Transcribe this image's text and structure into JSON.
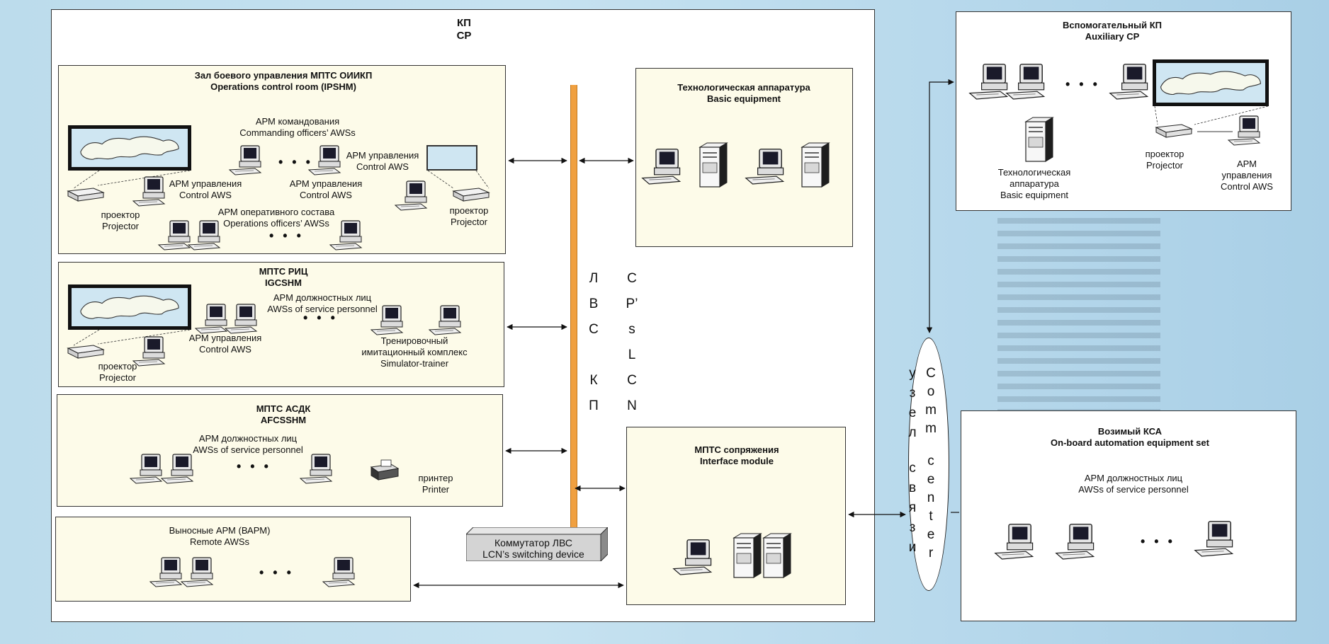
{
  "main_cp": {
    "title_ru": "КП",
    "title_en": "CP"
  },
  "ops_room": {
    "title_ru": "Зал боевого управления МПТС ОИИКП",
    "title_en": "Operations control room (IPSHM)",
    "commanding_ru": "АРМ командования",
    "commanding_en": "Commanding officers’ AWSs",
    "control_aws_ru": "АРМ управления",
    "control_aws_en": "Control AWS",
    "ops_staff_ru": "АРМ оперативного состава",
    "ops_staff_en": "Operations officers’ AWSs",
    "projector_ru": "проектор",
    "projector_en": "Projector",
    "dots": "• • •"
  },
  "igcshm": {
    "title_ru": "МПТС РИЦ",
    "title_en": "IGCSHM",
    "personnel_ru": "АРМ должностных лиц",
    "personnel_en": "AWSs of service personnel",
    "control_aws_ru": "АРМ управления",
    "control_aws_en": "Control AWS",
    "trainer_ru1": "Тренировочный",
    "trainer_ru2": "имитационный комплекс",
    "trainer_en": "Simulator-trainer",
    "projector_ru": "проектор",
    "projector_en": "Projector",
    "dots": "• • •"
  },
  "afcsshm": {
    "title_ru": "МПТС АСДК",
    "title_en": "AFCSSHM",
    "personnel_ru": "АРМ должностных лиц",
    "personnel_en": "AWSs of service personnel",
    "printer_ru": "принтер",
    "printer_en": "Printer",
    "dots": "• • •"
  },
  "remote": {
    "title_ru": "Выносные АРМ (ВАРМ)",
    "title_en": "Remote AWSs",
    "dots": "• • •"
  },
  "switch": {
    "line1": "Коммутатор ЛВС",
    "line2": "LCN’s switching device"
  },
  "lcn_ru": [
    "Л",
    "В",
    "С",
    "К",
    "П"
  ],
  "lcn_en": [
    "C",
    "P’",
    "s",
    "L",
    "C",
    "N"
  ],
  "basic": {
    "title_ru": "Технологическая аппаратура",
    "title_en": "Basic equipment"
  },
  "interface": {
    "title_ru": "МПТС сопряжения",
    "title_en": "Interface module"
  },
  "comm": {
    "ru": [
      "у",
      "з",
      "е",
      "л",
      "",
      "с",
      "в",
      "я",
      "з",
      "и"
    ],
    "en": [
      "C",
      "o",
      "m",
      "m",
      "",
      "c",
      "e",
      "n",
      "t",
      "e",
      "r"
    ]
  },
  "aux": {
    "title_ru": "Вспомогательный КП",
    "title_en": "Auxiliary CP",
    "basic_ru1": "Технологическая",
    "basic_ru2": "аппаратура",
    "basic_en": "Basic equipment",
    "projector_ru": "проектор",
    "projector_en": "Projector",
    "aws_ru1": "АРМ",
    "aws_ru2": "управления",
    "aws_en": "Control AWS",
    "dots": "• • •"
  },
  "onboard": {
    "title_ru": "Возимый КСА",
    "title_en": "On-board automation equipment set",
    "personnel_ru": "АРМ должностных лиц",
    "personnel_en": "AWSs of service personnel",
    "dots": "• • •"
  },
  "colors": {
    "panel": "#fdfbe9",
    "bus": "#f0a040",
    "background": "#bcdcec"
  }
}
